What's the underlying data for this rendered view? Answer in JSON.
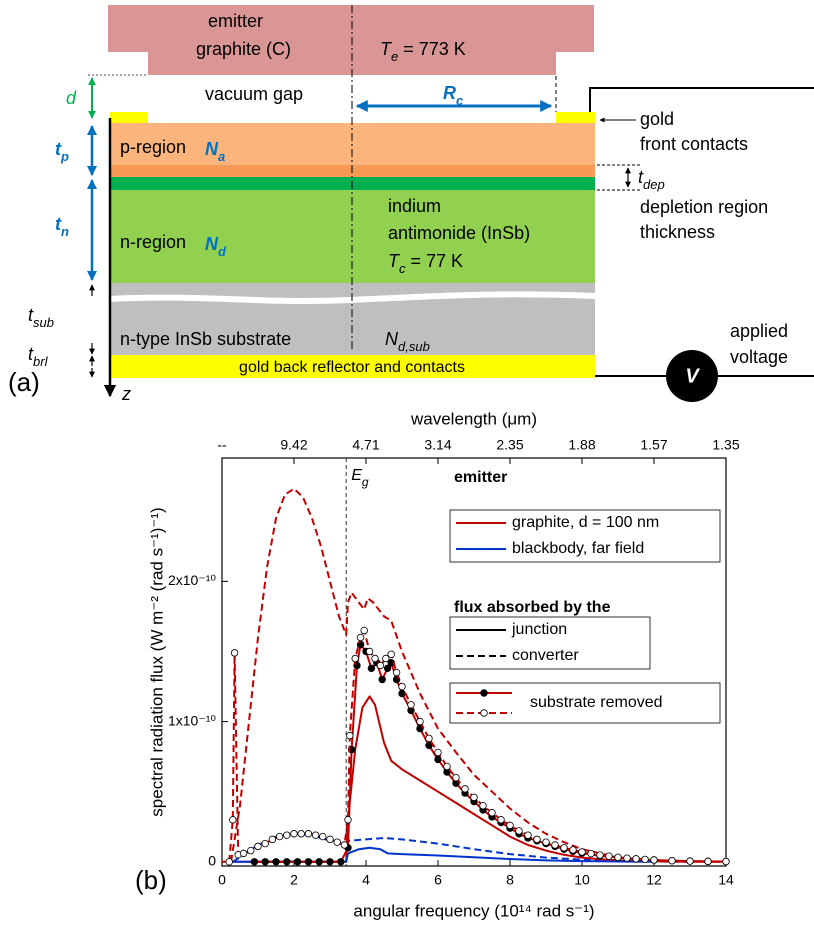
{
  "diagram": {
    "panel_label": "(a)",
    "emitter": [
      "emitter",
      "graphite (C)"
    ],
    "emitter_temp": {
      "main": "T",
      "sub": "e",
      "rest": " = 773 K"
    },
    "gap_symbol": "d",
    "vacuum_gap": "vacuum gap",
    "radius": {
      "main": "R",
      "sub": "c"
    },
    "front_contacts": [
      "gold",
      "front contacts"
    ],
    "p_region": "p-region",
    "acceptor": {
      "main": "N",
      "sub": "a"
    },
    "tp": {
      "main": "t",
      "sub": "p"
    },
    "tn": {
      "main": "t",
      "sub": "n"
    },
    "tdep": {
      "main": "t",
      "sub": "dep"
    },
    "depletion": [
      "depletion region",
      "thickness"
    ],
    "n_region": "n-region",
    "donor": {
      "main": "N",
      "sub": "d"
    },
    "cell": [
      "indium",
      "antimonide (InSb)"
    ],
    "cell_temp": {
      "main": "T",
      "sub": "c",
      "rest": " = 77 K"
    },
    "substrate": "n-type InSb substrate",
    "donor_sub": {
      "main": "N",
      "sub": "d,sub"
    },
    "tsub": {
      "main": "t",
      "sub": "sub"
    },
    "tbrl": {
      "main": "t",
      "sub": "brl"
    },
    "back_reflector": "gold back reflector and contacts",
    "z": "z",
    "voltage_symbol": "V",
    "voltage": [
      "applied",
      "voltage"
    ]
  },
  "chart_data": {
    "type": "line",
    "panel_label": "(b)",
    "xlabel": "angular frequency (10¹⁴ rad s⁻¹)",
    "ylabel": "spectral radiation flux (W m⁻² (rad s⁻¹)⁻¹)",
    "x2label": "wavelength (μm)",
    "xlim": [
      0,
      14
    ],
    "xticks": [
      0,
      2,
      4,
      6,
      8,
      10,
      12,
      14
    ],
    "x2ticks": [
      {
        "value": 0,
        "label": "--"
      },
      {
        "value": 2,
        "label": "9.42"
      },
      {
        "value": 4,
        "label": "4.71"
      },
      {
        "value": 6,
        "label": "3.14"
      },
      {
        "value": 8,
        "label": "2.35"
      },
      {
        "value": 10,
        "label": "1.88"
      },
      {
        "value": 12,
        "label": "1.57"
      },
      {
        "value": 14,
        "label": "1.35"
      }
    ],
    "ylim": [
      -3e-12,
      2.88e-10
    ],
    "yticks": [
      0,
      {
        "value": 1e-10,
        "label": "1x10⁻¹⁰"
      },
      {
        "value": 2e-10,
        "label": "2x10⁻¹⁰"
      }
    ],
    "annotations": [
      {
        "x": 3.45,
        "text": "E",
        "sub": "g"
      }
    ],
    "series": [
      {
        "color": "#c00000",
        "dash": true,
        "x": [
          0.25,
          0.5,
          0.75,
          1,
          1.25,
          1.5,
          1.75,
          2,
          2.25,
          2.5,
          2.75,
          3,
          3.25,
          3.45,
          3.5,
          3.6,
          3.8,
          3.95,
          4.05,
          4.2,
          4.5,
          4.7,
          5,
          5.5,
          6,
          6.5,
          7,
          7.5,
          8,
          8.5,
          9,
          9.5,
          10,
          10.5,
          11,
          11.5,
          12,
          12.5,
          13,
          14
        ],
        "values": [
          0,
          4e-11,
          1e-10,
          1.6e-10,
          2.1e-10,
          2.45e-10,
          2.62e-10,
          2.66e-10,
          2.6e-10,
          2.45e-10,
          2.25e-10,
          2e-10,
          1.75e-10,
          1.62e-10,
          1.85e-10,
          1.92e-10,
          1.85e-10,
          1.8e-10,
          1.88e-10,
          1.85e-10,
          1.75e-10,
          1.72e-10,
          1.5e-10,
          1.2e-10,
          9.5e-11,
          7.8e-11,
          6.2e-11,
          5e-11,
          3.8e-11,
          2.8e-11,
          2e-11,
          1.4e-11,
          9e-12,
          6e-12,
          3.5e-12,
          2e-12,
          1e-12,
          5e-13,
          2e-13,
          0
        ]
      },
      {
        "color": "#0033cc",
        "dash": true,
        "x": [
          0.3,
          0.6,
          1,
          1.5,
          2,
          2.5,
          3,
          3.4,
          3.5,
          4,
          4.5,
          5,
          6,
          7,
          8,
          9,
          10,
          11,
          12,
          13
        ],
        "values": [
          0,
          5e-12,
          1.2e-11,
          1.8e-11,
          2e-11,
          1.9e-11,
          1.5e-11,
          1.2e-11,
          1.5e-11,
          1.6e-11,
          1.7e-11,
          1.6e-11,
          1.3e-11,
          9e-12,
          5.5e-12,
          3e-12,
          1.5e-12,
          6e-13,
          2e-13,
          0
        ]
      },
      {
        "color": "#c00000",
        "dash": false,
        "x": [
          0,
          3.45,
          3.5,
          3.7,
          3.9,
          4.1,
          4.25,
          4.5,
          4.7,
          5,
          5.5,
          6,
          6.5,
          7,
          7.5,
          8,
          8.5,
          9,
          9.5,
          10,
          10.5,
          11,
          12,
          13,
          14
        ],
        "values": [
          0,
          0,
          3e-11,
          8e-11,
          1.1e-10,
          1.18e-10,
          1.12e-10,
          8.5e-11,
          7.2e-11,
          6.6e-11,
          5.8e-11,
          5e-11,
          4.2e-11,
          3.4e-11,
          2.6e-11,
          1.8e-11,
          1.2e-11,
          8e-12,
          5e-12,
          3e-12,
          1.8e-12,
          1e-12,
          4e-13,
          1e-13,
          0
        ]
      },
      {
        "color": "#0033cc",
        "dash": false,
        "x": [
          0.2,
          3.45,
          3.5,
          3.8,
          4.1,
          4.4,
          4.6,
          5,
          6,
          7,
          8,
          9,
          10,
          11,
          12
        ],
        "values": [
          0,
          0,
          6e-12,
          9e-12,
          1e-11,
          9e-12,
          6e-12,
          5.5e-12,
          4.5e-12,
          3.2e-12,
          2e-12,
          1e-12,
          5e-13,
          2e-13,
          0
        ]
      },
      {
        "color": "#c00000",
        "dash": false,
        "marker": "filled",
        "x": [
          0.9,
          1.2,
          1.5,
          1.8,
          2.1,
          2.4,
          2.7,
          3,
          3.3,
          3.5,
          3.6,
          3.75,
          3.85,
          4,
          4.15,
          4.3,
          4.45,
          4.6,
          4.7,
          4.85,
          5,
          5.25,
          5.5,
          5.75,
          6,
          6.25,
          6.5,
          6.75,
          7,
          7.25,
          7.5,
          7.75,
          8,
          8.25,
          8.5,
          8.75,
          9,
          9.25,
          9.5,
          9.75,
          10,
          10.5,
          11,
          11.5,
          12,
          12.5,
          13,
          13.5,
          14
        ],
        "values": [
          0,
          0,
          0,
          0,
          0,
          0,
          0,
          0,
          0,
          1e-11,
          8e-11,
          1.4e-10,
          1.55e-10,
          1.5e-10,
          1.38e-10,
          1.42e-10,
          1.3e-10,
          1.38e-10,
          1.42e-10,
          1.3e-10,
          1.2e-10,
          1.08e-10,
          9.5e-11,
          8.3e-11,
          7.3e-11,
          6.4e-11,
          5.6e-11,
          4.9e-11,
          4.3e-11,
          3.7e-11,
          3.2e-11,
          2.8e-11,
          2.4e-11,
          2e-11,
          1.7e-11,
          1.5e-11,
          1.3e-11,
          1.1e-11,
          9e-12,
          7.5e-12,
          6.2e-12,
          4.3e-12,
          3e-12,
          2e-12,
          1.3e-12,
          8e-13,
          5e-13,
          3e-13,
          2e-13
        ]
      },
      {
        "color": "#c00000",
        "dash": true,
        "marker": "open",
        "x": [
          0.2,
          0.3,
          0.35,
          0.45,
          0.6,
          0.8,
          1,
          1.2,
          1.4,
          1.6,
          1.8,
          2,
          2.2,
          2.4,
          2.6,
          2.8,
          3,
          3.2,
          3.4,
          3.5,
          3.55,
          3.7,
          3.85,
          3.95,
          4.1,
          4.25,
          4.4,
          4.55,
          4.7,
          4.85,
          5,
          5.25,
          5.5,
          5.75,
          6,
          6.25,
          6.5,
          6.75,
          7,
          7.25,
          7.5,
          7.75,
          8,
          8.25,
          8.5,
          8.75,
          9,
          9.25,
          9.5,
          9.75,
          10,
          10.25,
          10.5,
          10.75,
          11,
          11.25,
          11.5,
          11.75,
          12,
          12.5,
          13,
          13.5,
          14
        ],
        "values": [
          0,
          3e-11,
          1.49e-10,
          5e-12,
          6e-12,
          8e-12,
          1.1e-11,
          1.3e-11,
          1.6e-11,
          1.8e-11,
          1.9e-11,
          2e-11,
          2e-11,
          2e-11,
          1.9e-11,
          1.8e-11,
          1.6e-11,
          1.4e-11,
          1.2e-11,
          3e-11,
          9e-11,
          1.45e-10,
          1.6e-10,
          1.65e-10,
          1.5e-10,
          1.45e-10,
          1.4e-10,
          1.45e-10,
          1.48e-10,
          1.35e-10,
          1.25e-10,
          1.12e-10,
          1e-10,
          8.8e-11,
          7.8e-11,
          6.8e-11,
          6e-11,
          5.2e-11,
          4.6e-11,
          4e-11,
          3.5e-11,
          3e-11,
          2.6e-11,
          2.2e-11,
          1.9e-11,
          1.6e-11,
          1.4e-11,
          1.2e-11,
          1e-11,
          8.5e-12,
          7e-12,
          5.8e-12,
          4.8e-12,
          4e-12,
          3.2e-12,
          2.6e-12,
          2.1e-12,
          1.7e-12,
          1.3e-12,
          8e-13,
          5e-13,
          3e-13,
          2e-13
        ]
      }
    ],
    "legend": [
      {
        "title": "emitter",
        "items": [
          {
            "name": "graphite, d = 100 nm",
            "color": "#c00000",
            "dash": false
          },
          {
            "name": "blackbody, far field",
            "color": "#0033cc",
            "dash": false
          }
        ]
      },
      {
        "title": "flux absorbed by the",
        "items": [
          {
            "name": "junction",
            "color": "#000000",
            "dash": false
          },
          {
            "name": "converter",
            "color": "#000000",
            "dash": true
          }
        ]
      },
      {
        "items": [
          {
            "name": "substrate removed",
            "lines": [
              {
                "color": "#c00000",
                "dash": false,
                "marker": "filled"
              },
              {
                "color": "#c00000",
                "dash": true,
                "marker": "open"
              }
            ]
          }
        ]
      }
    ]
  }
}
